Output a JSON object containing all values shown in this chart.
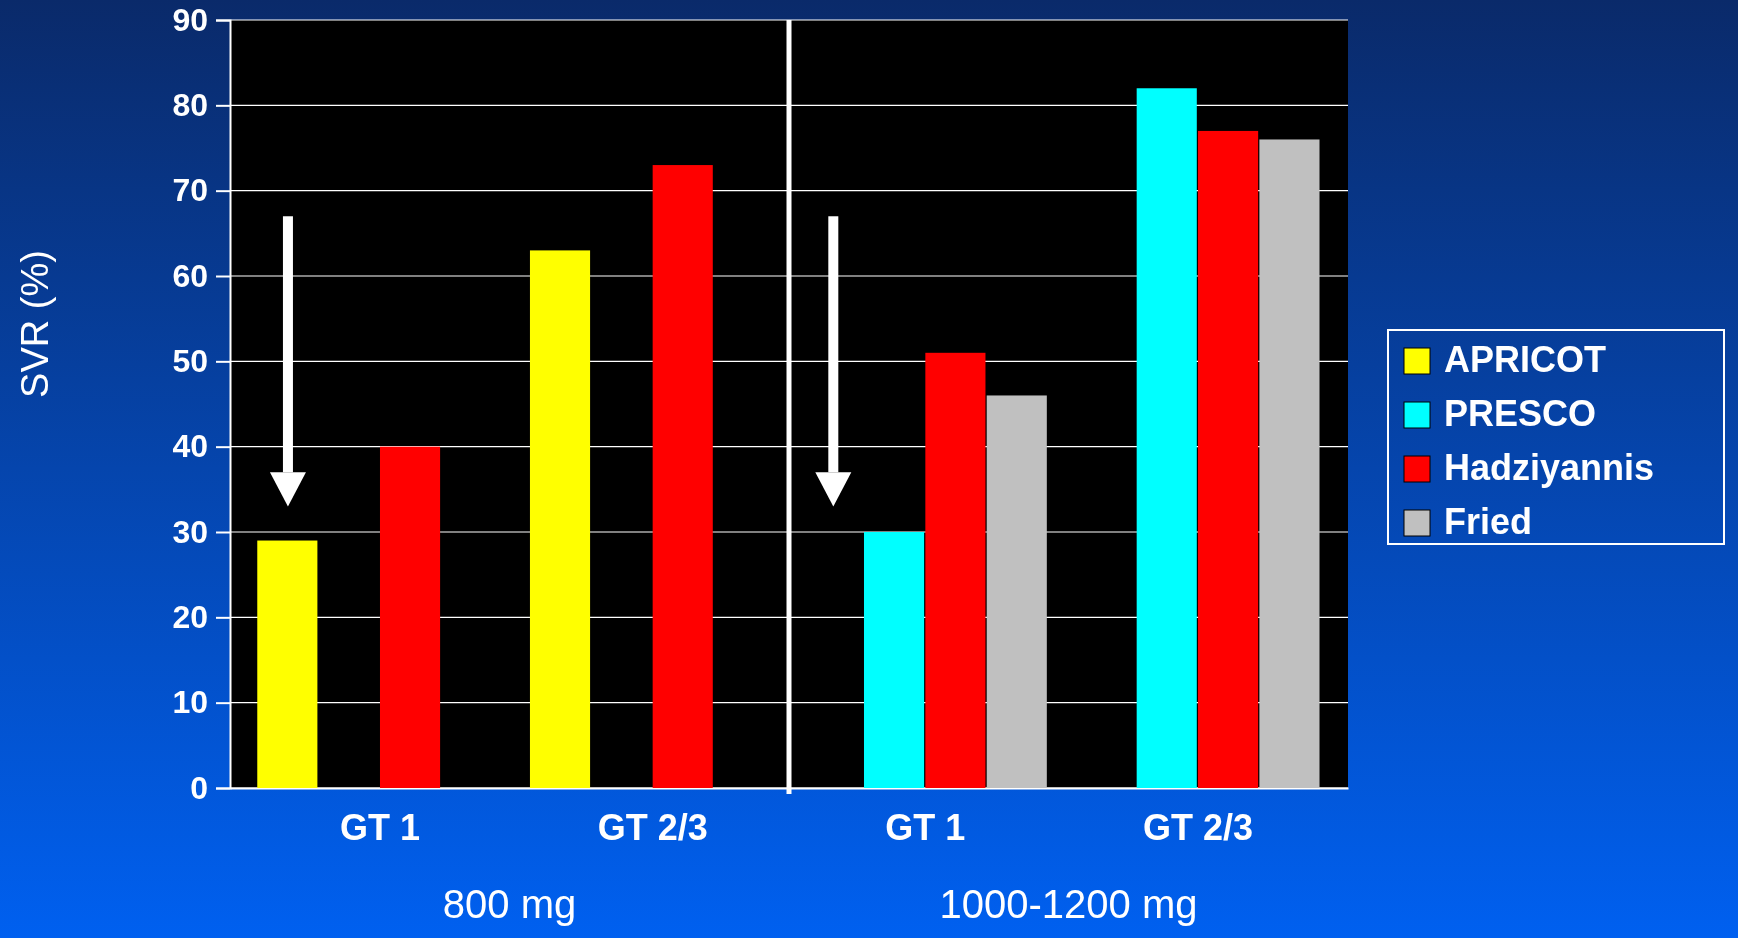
{
  "chart_data": {
    "type": "bar",
    "ylabel": "SVR (%)",
    "categories": [
      "GT 1",
      "GT 2/3",
      "GT 1",
      "GT 2/3"
    ],
    "series": [
      {
        "name": "APRICOT",
        "color": "#ffff00",
        "values": [
          29,
          63,
          null,
          null
        ]
      },
      {
        "name": "PRESCO",
        "color": "#00ffff",
        "values": [
          null,
          null,
          30,
          82
        ]
      },
      {
        "name": "Hadziyannis",
        "color": "#ff0000",
        "values": [
          40,
          73,
          51,
          77
        ]
      },
      {
        "name": "Fried",
        "color": "#c0c0c0",
        "values": [
          null,
          null,
          46,
          76
        ]
      }
    ],
    "ylim": [
      0,
      90
    ],
    "yticks": [
      0,
      10,
      20,
      30,
      40,
      50,
      60,
      70,
      80,
      90
    ],
    "grid": "y",
    "legend": "right",
    "annotations": [
      "800 mg",
      "1000-1200  mg"
    ]
  }
}
